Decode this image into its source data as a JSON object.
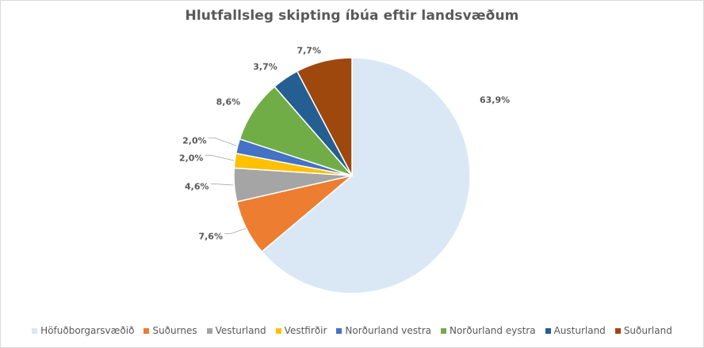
{
  "chart_data": {
    "type": "pie",
    "title": "Hlutfallsleg skipting íbúa eftir landsvæðum",
    "categories": [
      "Höfuðborgarsvæðið",
      "Suðurnes",
      "Vesturland",
      "Vestfirðir",
      "Norðurland vestra",
      "Norðurland eystra",
      "Austurland",
      "Suðurland"
    ],
    "values": [
      63.9,
      7.6,
      4.6,
      2.0,
      2.0,
      8.6,
      3.7,
      7.7
    ],
    "value_labels": [
      "63,9%",
      "7,6%",
      "4,6%",
      "2,0%",
      "2,0%",
      "8,6%",
      "3,7%",
      "7,7%"
    ],
    "colors": [
      "#dae8f5",
      "#ed7d31",
      "#a5a5a5",
      "#ffc000",
      "#4472c4",
      "#70ad47",
      "#255e91",
      "#9e480e"
    ],
    "legend_position": "bottom"
  }
}
